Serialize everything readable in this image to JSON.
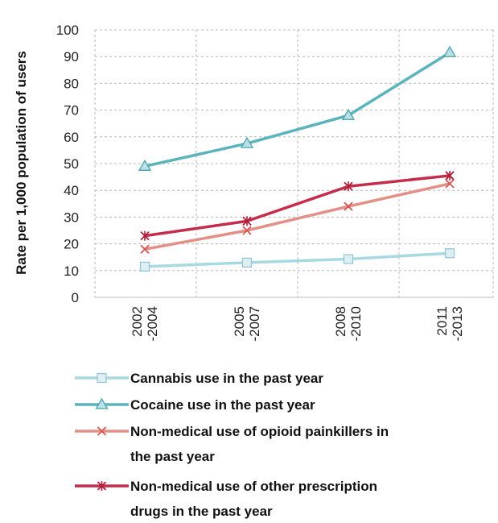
{
  "chart_data": {
    "type": "line",
    "title": "",
    "xlabel": "",
    "ylabel": "Rate per 1,000 population of users",
    "ylim": [
      0,
      100
    ],
    "yticks": [
      0,
      10,
      20,
      30,
      40,
      50,
      60,
      70,
      80,
      90,
      100
    ],
    "grid": "dashed",
    "legend_position": "bottom",
    "categories": [
      {
        "line1": "2002",
        "line2": "-2004"
      },
      {
        "line1": "2005",
        "line2": "-2007"
      },
      {
        "line1": "2008",
        "line2": "-2010"
      },
      {
        "line1": "2011",
        "line2": "-2013"
      }
    ],
    "series": [
      {
        "name_lines": [
          "Cannabis use in the past year"
        ],
        "marker": "square",
        "color": "#a7d9e3",
        "values": [
          11.5,
          13,
          14.3,
          16.5
        ]
      },
      {
        "name_lines": [
          "Cocaine use in the past year"
        ],
        "marker": "triangle",
        "color": "#5bb3bc",
        "values": [
          49,
          57.5,
          68,
          91.5
        ]
      },
      {
        "name_lines": [
          "Non-medical use of opioid painkillers in",
          "the past year"
        ],
        "marker": "x",
        "color": "#e39088",
        "values": [
          18,
          25,
          34,
          42.5
        ]
      },
      {
        "name_lines": [
          "Non-medical use of other prescription",
          "drugs in the past year"
        ],
        "marker": "star",
        "color": "#c32d4b",
        "values": [
          23,
          28.5,
          41.5,
          45.5
        ]
      }
    ]
  }
}
